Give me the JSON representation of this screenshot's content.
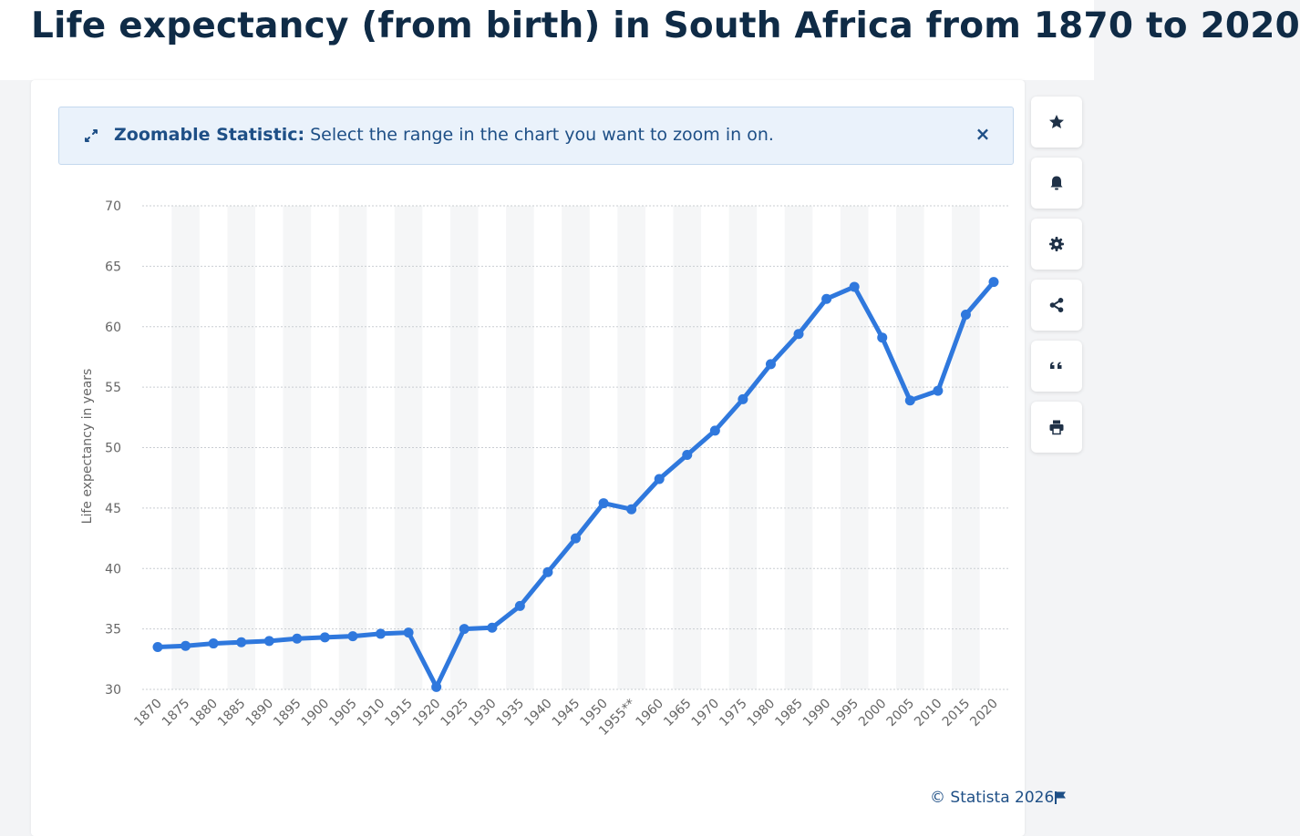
{
  "page": {
    "title": "Life expectancy (from birth) in South Africa from 1870 to 2020"
  },
  "banner": {
    "bold_label": "Zoomable Statistic:",
    "text": " Select the range in the chart you want to zoom in on.",
    "close_glyph": "×"
  },
  "sidebar": {
    "buttons": [
      "star-icon",
      "bell-icon",
      "gear-icon",
      "share-icon",
      "quote-icon",
      "print-icon"
    ]
  },
  "footer": {
    "credit": "© Statista 2026"
  },
  "colors": {
    "line": "#2f78dd",
    "grid": "#c9cdd2",
    "band": "#f5f6f7",
    "axis_text": "#666666",
    "title": "#0f2b46"
  },
  "chart_data": {
    "type": "line",
    "title": "Life expectancy (from birth) in South Africa from 1870 to 2020",
    "xlabel": "",
    "ylabel": "Life expectancy in years",
    "ylim": [
      30,
      70
    ],
    "yticks": [
      30,
      35,
      40,
      45,
      50,
      55,
      60,
      65,
      70
    ],
    "grid": true,
    "categories": [
      "1870",
      "1875",
      "1880",
      "1885",
      "1890",
      "1895",
      "1900",
      "1905",
      "1910",
      "1915",
      "1920",
      "1925",
      "1930",
      "1935",
      "1940",
      "1945",
      "1950",
      "1955**",
      "1960",
      "1965",
      "1970",
      "1975",
      "1980",
      "1985",
      "1990",
      "1995",
      "2000",
      "2005",
      "2010",
      "2015",
      "2020"
    ],
    "series": [
      {
        "name": "Life expectancy in years",
        "values": [
          33.5,
          33.6,
          33.8,
          33.9,
          34.0,
          34.2,
          34.3,
          34.4,
          34.6,
          34.7,
          30.2,
          35.0,
          35.1,
          36.9,
          39.7,
          42.5,
          45.4,
          44.9,
          47.4,
          49.4,
          51.4,
          54.0,
          56.9,
          59.4,
          62.3,
          63.3,
          59.1,
          53.9,
          54.7,
          61.0,
          63.7
        ]
      }
    ]
  }
}
